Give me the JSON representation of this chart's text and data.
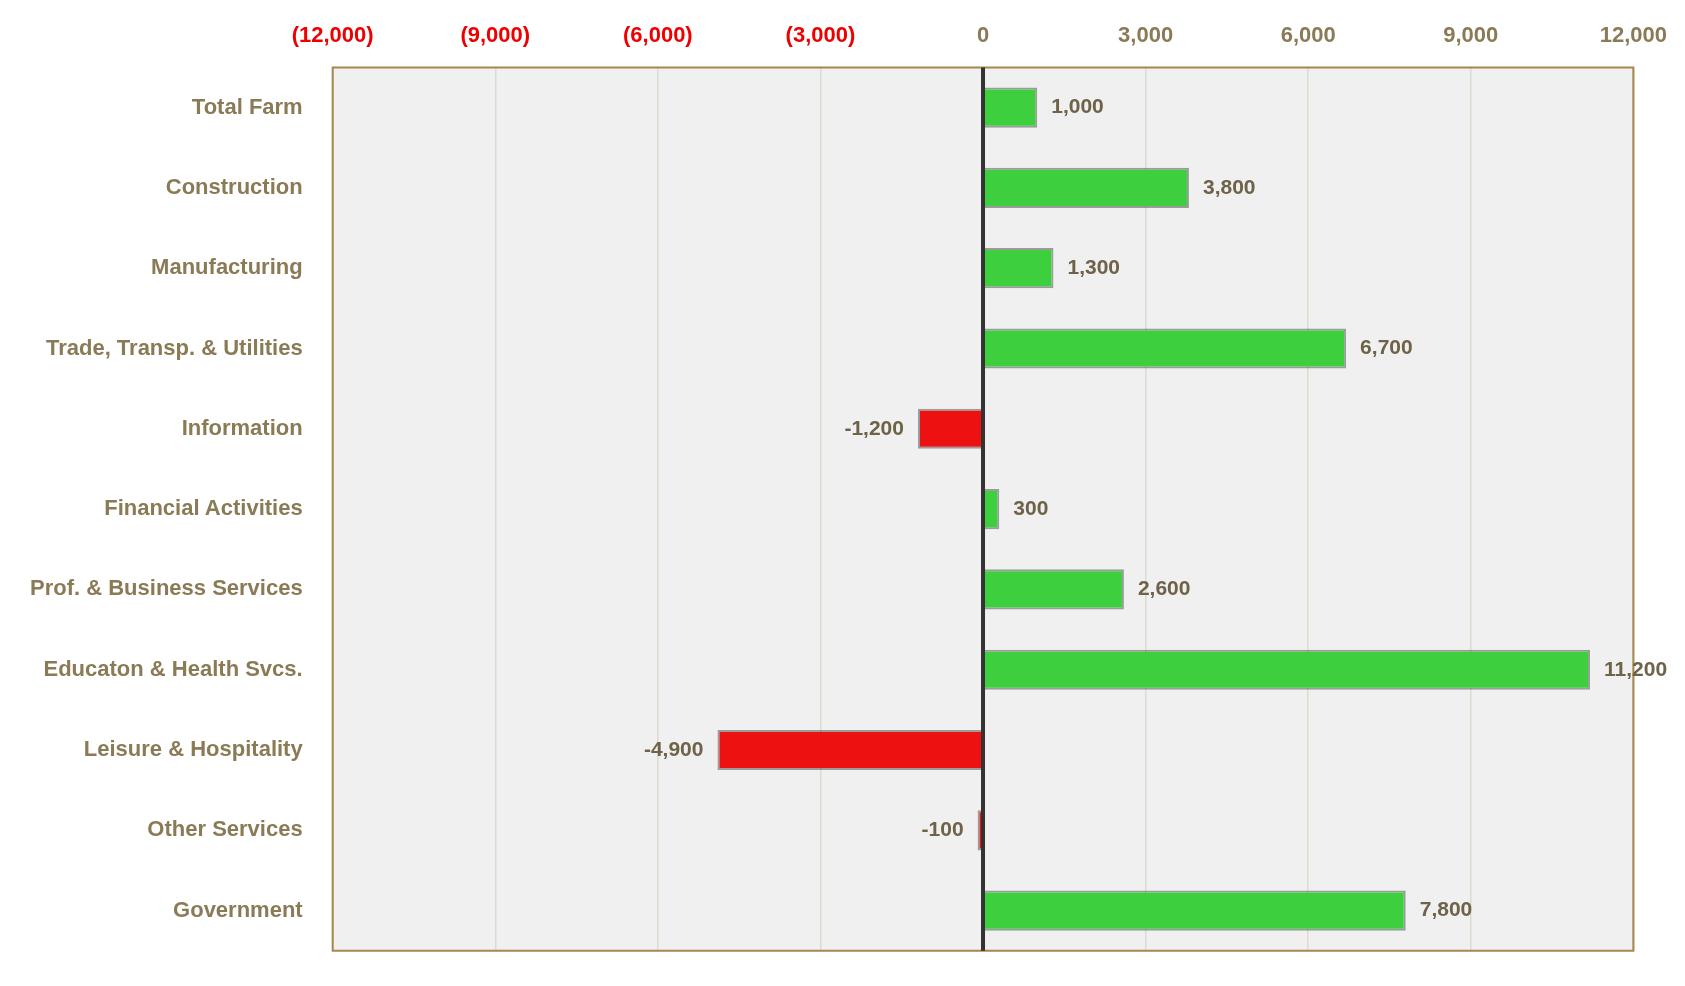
{
  "chart_data": {
    "type": "bar",
    "orientation": "horizontal",
    "categories": [
      "Total Farm",
      "Construction",
      "Manufacturing",
      "Trade, Transp. & Utilities",
      "Information",
      "Financial Activities",
      "Prof. & Business Services",
      "Educaton & Health Svcs.",
      "Leisure & Hospitality",
      "Other Services",
      "Government"
    ],
    "values": [
      1000,
      3800,
      1300,
      6700,
      -1200,
      300,
      2600,
      11200,
      -4900,
      -100,
      7800
    ],
    "colors": [
      "#3ecf3e",
      "#3ecf3e",
      "#3ecf3e",
      "#3ecf3e",
      "#ee1111",
      "#3ecf3e",
      "#3ecf3e",
      "#3ecf3e",
      "#ee1111",
      "#ee1111",
      "#3ecf3e"
    ],
    "value_labels": [
      "1,000",
      "3,800",
      "1,300",
      "6,700",
      "-1,200",
      "300",
      "2,600",
      "11,200",
      "-4,900",
      "-100",
      "7,800"
    ],
    "xlim": [
      -12000,
      12000
    ],
    "xticks": [
      {
        "value": -12000,
        "label": "(12,000)"
      },
      {
        "value": -9000,
        "label": "(9,000)"
      },
      {
        "value": -6000,
        "label": "(6,000)"
      },
      {
        "value": -3000,
        "label": "(3,000)"
      },
      0,
      {
        "value": 3000,
        "label": "3,000"
      },
      {
        "value": 6000,
        "label": "6,000"
      },
      {
        "value": 9000,
        "label": "9,000"
      },
      {
        "value": 12000,
        "label": "12,000"
      }
    ],
    "grid": "x",
    "legend": false
  }
}
